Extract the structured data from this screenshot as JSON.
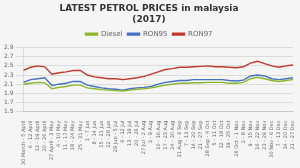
{
  "chart_data": {
    "type": "line",
    "title": "LATEST PETROL PRICES in malaysia",
    "subtitle": "(2017)",
    "categories": [
      "30 March - 5 April",
      "6 - 12 April",
      "13 - 19 April",
      "20 - 26 April",
      "27 April - 3 May",
      "4 - 10 May",
      "11 - 17 May",
      "18 - 24 May",
      "25 - 31 May",
      "1 - 7 Jun",
      "8 - 14 Jun",
      "15 - 21 Jun",
      "22 - 28 Jun",
      "29 Jun - 5 Jul",
      "6 - 12 Jul",
      "13 - 19 Jul",
      "20 - 26 Jul",
      "27 Jul - 2 Aug",
      "3 - 9 Aug",
      "10 - 16 Aug",
      "17 - 23 Aug",
      "24 - 30 Aug",
      "31 Aug - 6 Sep",
      "7 - 13 Sep",
      "14 - 20 Sep",
      "21 - 27 Sep",
      "28 Sep - 4 Oct",
      "5 - 11 Oct",
      "12 - 18 Oct",
      "19 - 25 Oct",
      "26 Oct - 1 Nov",
      "2 - 8 Nov",
      "9 - 15 Nov",
      "16 - 22 Nov",
      "23 - 29 Nov",
      "30 Nov - 6 Dec",
      "7 - 13 Dec",
      "14 - 20 Dec",
      "21 - 27 Dec"
    ],
    "series": [
      {
        "name": "Diesel",
        "color": "#8ab82a",
        "values": [
          2.1,
          2.12,
          2.14,
          2.13,
          2.0,
          2.03,
          2.05,
          2.08,
          2.08,
          2.02,
          2.0,
          1.98,
          1.97,
          1.96,
          1.95,
          1.97,
          1.99,
          2.0,
          2.02,
          2.05,
          2.08,
          2.1,
          2.12,
          2.12,
          2.13,
          2.13,
          2.14,
          2.14,
          2.14,
          2.12,
          2.12,
          2.14,
          2.22,
          2.25,
          2.22,
          2.18,
          2.16,
          2.18,
          2.2
        ]
      },
      {
        "name": "RON95",
        "color": "#4472c4",
        "values": [
          2.14,
          2.2,
          2.22,
          2.24,
          2.07,
          2.1,
          2.12,
          2.16,
          2.16,
          2.08,
          2.05,
          2.02,
          2.0,
          1.99,
          1.97,
          2.0,
          2.02,
          2.03,
          2.05,
          2.1,
          2.14,
          2.16,
          2.18,
          2.18,
          2.2,
          2.2,
          2.2,
          2.2,
          2.2,
          2.18,
          2.17,
          2.19,
          2.28,
          2.3,
          2.28,
          2.22,
          2.2,
          2.22,
          2.24
        ]
      },
      {
        "name": "RON97",
        "color": "#c0392b",
        "values": [
          2.4,
          2.47,
          2.5,
          2.48,
          2.32,
          2.35,
          2.37,
          2.4,
          2.4,
          2.3,
          2.26,
          2.24,
          2.22,
          2.22,
          2.2,
          2.22,
          2.24,
          2.27,
          2.32,
          2.37,
          2.42,
          2.44,
          2.47,
          2.47,
          2.48,
          2.49,
          2.5,
          2.48,
          2.48,
          2.47,
          2.46,
          2.48,
          2.56,
          2.6,
          2.55,
          2.5,
          2.47,
          2.5,
          2.52
        ]
      }
    ],
    "ylim": [
      1.5,
      2.9
    ],
    "yticks": [
      1.5,
      1.7,
      1.9,
      2.1,
      2.3,
      2.5,
      2.7,
      2.9
    ],
    "grid": true,
    "legend": "top"
  }
}
